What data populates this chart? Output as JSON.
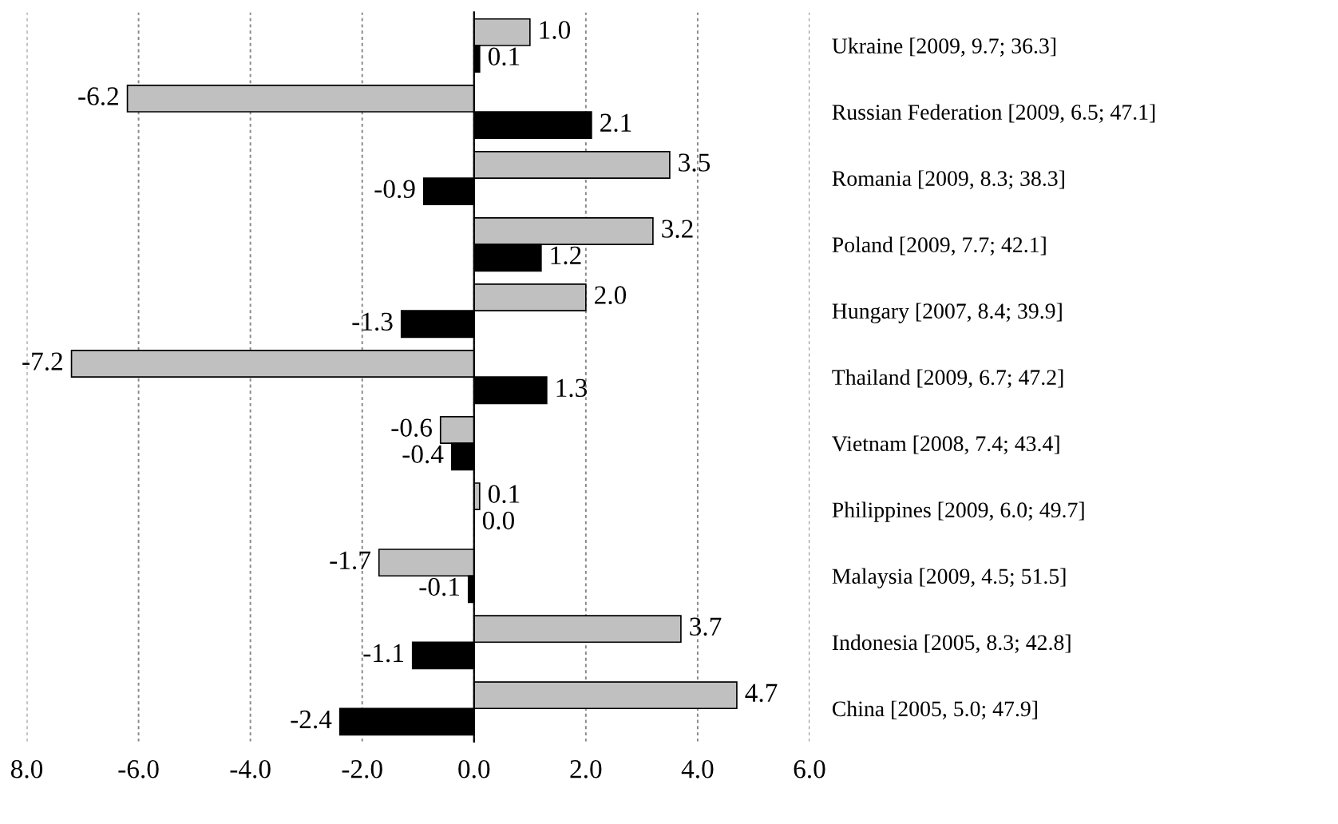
{
  "chart_data": {
    "type": "bar",
    "orientation": "horizontal",
    "categories": [
      "Ukraine [2009, 9.7; 36.3]",
      "Russian Federation [2009, 6.5; 47.1]",
      "Romania [2009, 8.3; 38.3]",
      "Poland [2009, 7.7; 42.1]",
      "Hungary [2007, 8.4; 39.9]",
      "Thailand [2009, 6.7; 47.2]",
      "Vietnam [2008, 7.4; 43.4]",
      "Philippines [2009, 6.0; 49.7]",
      "Malaysia [2009, 4.5; 51.5]",
      "Indonesia [2005, 8.3; 42.8]",
      "China [2005, 5.0; 47.9]"
    ],
    "series": [
      {
        "color": "#c0c0c0",
        "values": [
          1.0,
          -6.2,
          3.5,
          3.2,
          2.0,
          -7.2,
          -0.6,
          0.1,
          -1.7,
          3.7,
          4.7
        ],
        "value_labels": [
          "1.0",
          "-6.2",
          "3.5",
          "3.2",
          "2.0",
          "-7.2",
          "-0.6",
          "0.1",
          "-1.7",
          "3.7",
          "4.7"
        ]
      },
      {
        "color": "#000000",
        "values": [
          0.1,
          2.1,
          -0.9,
          1.2,
          -1.3,
          1.3,
          -0.4,
          0.0,
          -0.1,
          -1.1,
          -2.4
        ],
        "value_labels": [
          "0.1",
          "2.1",
          "-0.9",
          "1.2",
          "-1.3",
          "1.3",
          "-0.4",
          "0.0",
          "-0.1",
          "-1.1",
          "-2.4"
        ]
      }
    ],
    "xlim": [
      -8,
      6
    ],
    "xticks": [
      {
        "value": -8,
        "label": "8.0"
      },
      {
        "value": -6,
        "label": "-6.0"
      },
      {
        "value": -4,
        "label": "-4.0"
      },
      {
        "value": -2,
        "label": "-2.0"
      },
      {
        "value": 0,
        "label": "0.0"
      },
      {
        "value": 2,
        "label": "2.0"
      },
      {
        "value": 4,
        "label": "4.0"
      },
      {
        "value": 6,
        "label": "6.0"
      }
    ],
    "grid": "x",
    "legend": false
  }
}
